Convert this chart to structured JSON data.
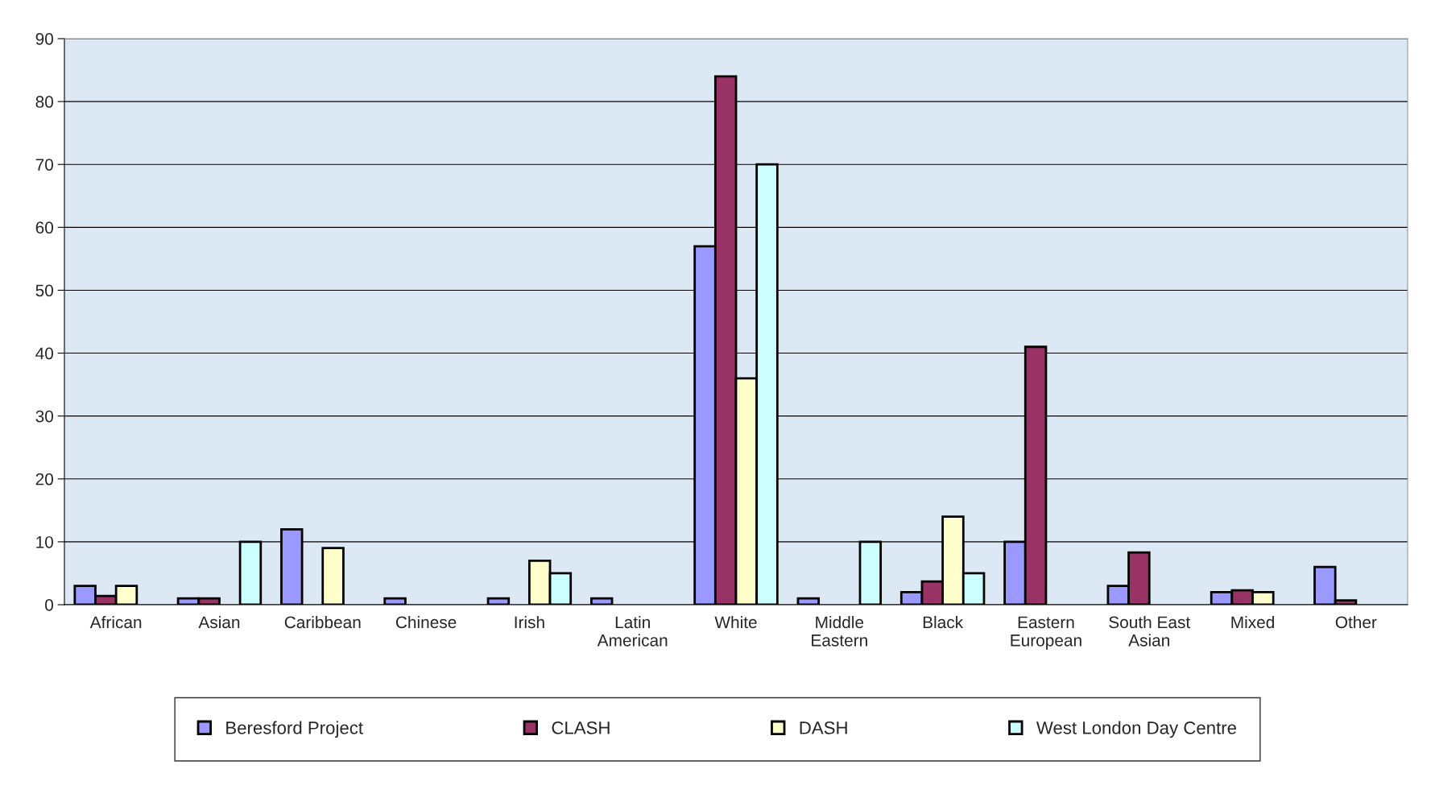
{
  "chart_data": {
    "type": "bar",
    "categories": [
      "African",
      "Asian",
      "Caribbean",
      "Chinese",
      "Irish",
      "Latin\nAmerican",
      "White",
      "Middle\nEastern",
      "Black",
      "Eastern\nEuropean",
      "South East\nAsian",
      "Mixed",
      "Other"
    ],
    "series": [
      {
        "name": "Beresford Project",
        "color": "#9999ff",
        "values": [
          3,
          1,
          12,
          1,
          1,
          1,
          57,
          1,
          2,
          10,
          3,
          2,
          6
        ]
      },
      {
        "name": "CLASH",
        "color": "#993366",
        "values": [
          1.4,
          1,
          null,
          null,
          null,
          null,
          84,
          null,
          3.7,
          41,
          8.3,
          2.3,
          0.7
        ]
      },
      {
        "name": "DASH",
        "color": "#ffffcc",
        "values": [
          3,
          null,
          9,
          null,
          7,
          null,
          36,
          null,
          14,
          null,
          null,
          2,
          null
        ]
      },
      {
        "name": "West London Day Centre",
        "color": "#ccffff",
        "values": [
          null,
          10,
          null,
          null,
          5,
          null,
          70,
          10,
          5,
          null,
          null,
          null,
          null
        ]
      }
    ],
    "ylim": [
      0,
      90
    ],
    "yticks": [
      0,
      10,
      20,
      30,
      40,
      50,
      60,
      70,
      80,
      90
    ],
    "grid": "y",
    "legend": "bottom"
  }
}
